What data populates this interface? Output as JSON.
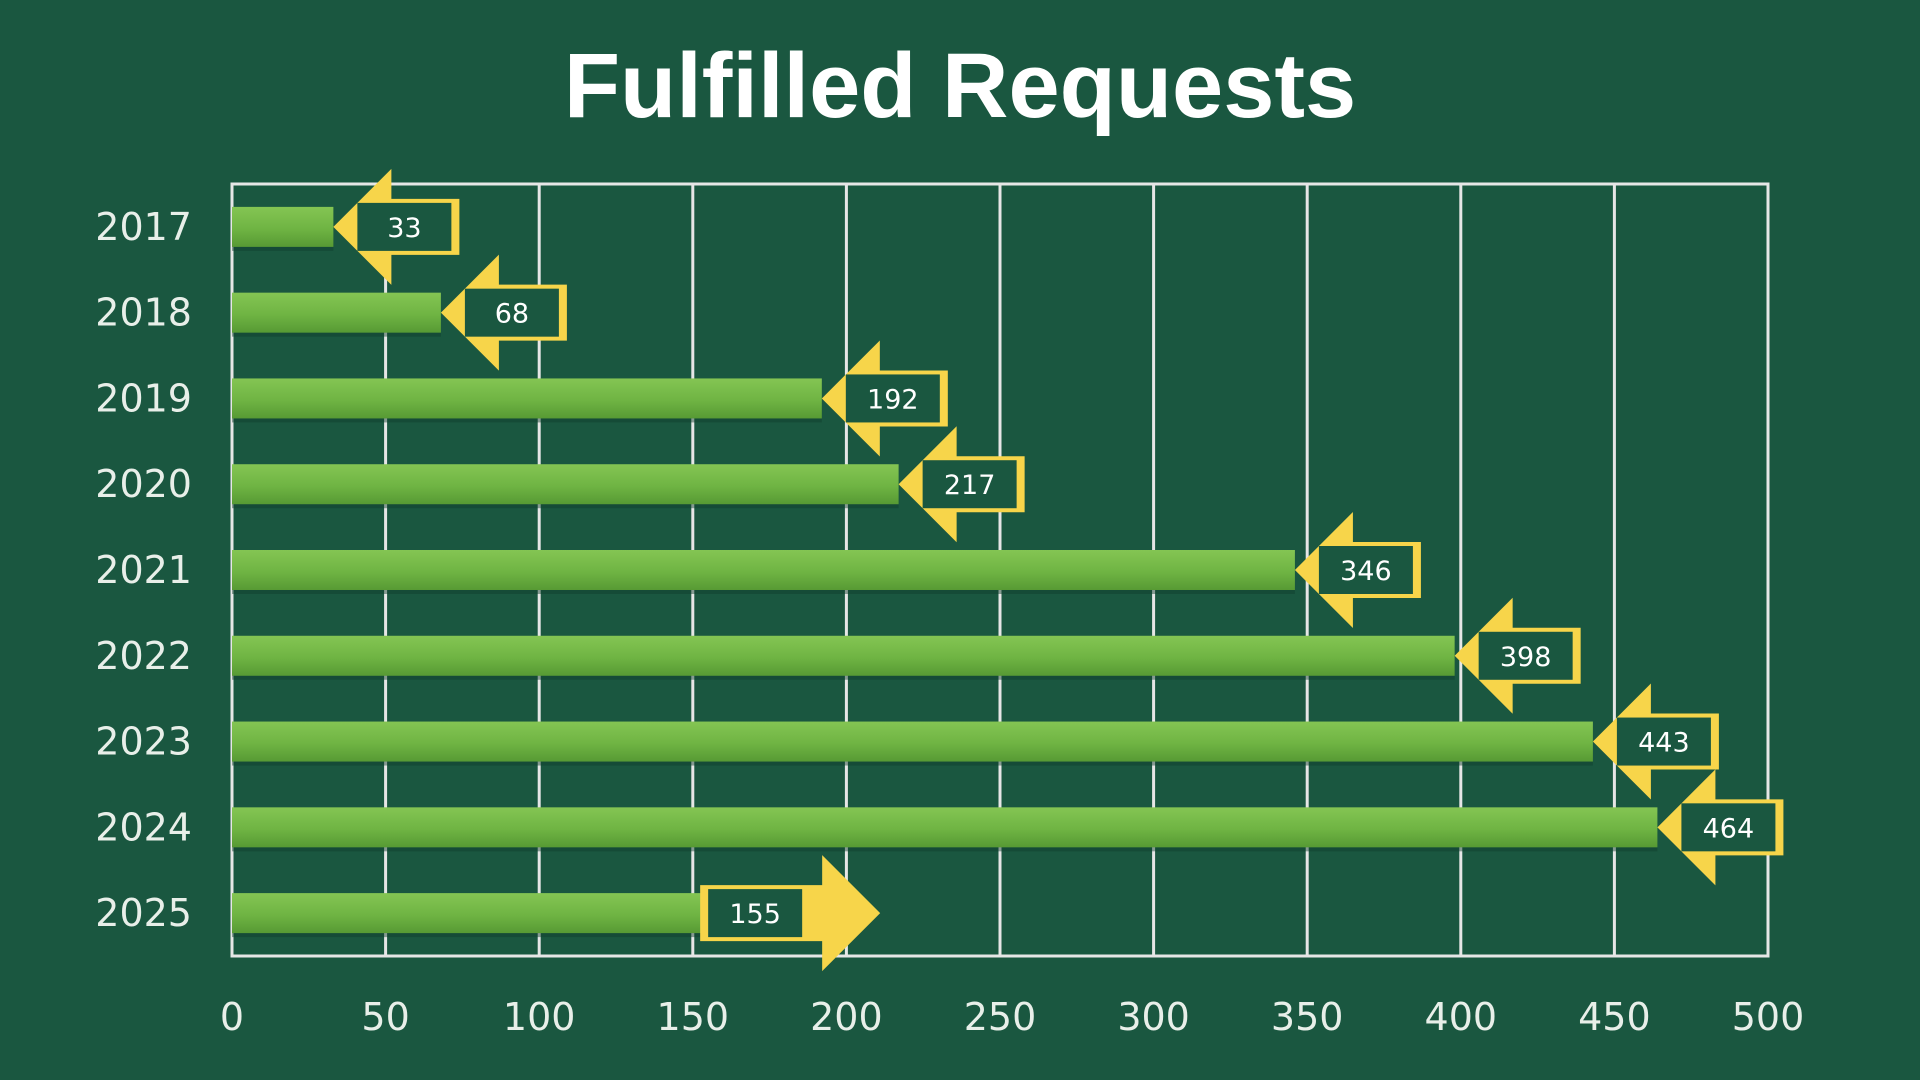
{
  "chart_data": {
    "type": "bar",
    "orientation": "horizontal",
    "title": "Fulfilled Requests",
    "categories": [
      "2017",
      "2018",
      "2019",
      "2020",
      "2021",
      "2022",
      "2023",
      "2024",
      "2025"
    ],
    "values": [
      33,
      68,
      192,
      217,
      346,
      398,
      443,
      464,
      155
    ],
    "xlim": [
      0,
      500
    ],
    "x_ticks": [
      0,
      50,
      100,
      150,
      200,
      250,
      300,
      350,
      400,
      450,
      500
    ],
    "xlabel": "",
    "ylabel": "",
    "grid": true,
    "legend": "none",
    "colors": {
      "background": "#1a5740",
      "bar": "#6fb443",
      "bar_highlight": "#84c553",
      "bar_shadow": "#4d8a2e",
      "grid": "#e6e6e6",
      "callout": "#f7d54a",
      "label_text": "#ffffff",
      "axis_text": "#e8efe9"
    }
  }
}
